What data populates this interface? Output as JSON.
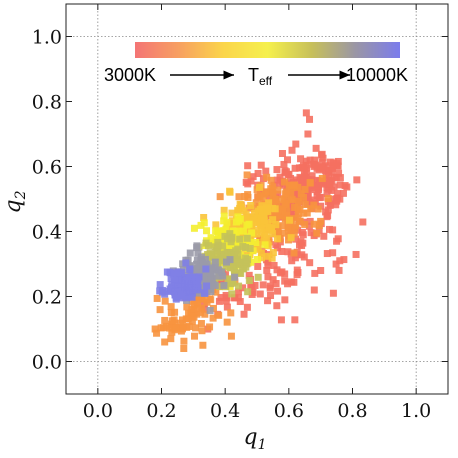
{
  "chart_data": {
    "type": "scatter",
    "xlabel": "q",
    "xlabel_sub": "1",
    "ylabel": "q",
    "ylabel_sub": "2",
    "xlim": [
      -0.1,
      1.1
    ],
    "ylim": [
      -0.1,
      1.1
    ],
    "x_ticks": [
      0.0,
      0.2,
      0.4,
      0.6,
      0.8,
      1.0
    ],
    "x_tick_labels": [
      "0.0",
      "0.2",
      "0.4",
      "0.6",
      "0.8",
      "1.0"
    ],
    "y_ticks": [
      0.0,
      0.2,
      0.4,
      0.6,
      0.8,
      1.0
    ],
    "y_tick_labels": [
      "0.0",
      "0.2",
      "0.4",
      "0.6",
      "0.8",
      "1.0"
    ],
    "reference_lines": {
      "x": [
        0.0,
        1.0
      ],
      "y": [
        0.0,
        1.0
      ]
    },
    "colorbar": {
      "label": "T",
      "label_sub": "eff",
      "min_label": "3000K",
      "max_label": "10000K",
      "colors": [
        "#f47575",
        "#f7a061",
        "#fbd54a",
        "#f5f04d",
        "#c7c05a",
        "#9a96a6",
        "#7b7cec"
      ]
    },
    "series_colors": {
      "hot": "#8080e6",
      "warm_hot": "#9a9aa8",
      "mid": "#c4c25a",
      "warm": "#f4ee30",
      "orange_yellow": "#f9c43a",
      "orange": "#f7933f",
      "cool": "#f57060"
    },
    "point_groups": [
      {
        "temp": "hot",
        "cx": 0.27,
        "cy": 0.235,
        "sx": 0.03,
        "sy": 0.025,
        "n": 120,
        "seed": 11
      },
      {
        "temp": "warm_hot",
        "cx": 0.33,
        "cy": 0.265,
        "sx": 0.035,
        "sy": 0.035,
        "n": 110,
        "seed": 12
      },
      {
        "temp": "mid",
        "cx": 0.41,
        "cy": 0.31,
        "sx": 0.04,
        "sy": 0.04,
        "n": 110,
        "seed": 13
      },
      {
        "temp": "warm",
        "cx": 0.42,
        "cy": 0.36,
        "sx": 0.04,
        "sy": 0.04,
        "n": 130,
        "seed": 14
      },
      {
        "temp": "orange_yellow",
        "cx": 0.49,
        "cy": 0.42,
        "sx": 0.05,
        "sy": 0.045,
        "n": 130,
        "seed": 15
      },
      {
        "temp": "orange",
        "cx": 0.57,
        "cy": 0.46,
        "sx": 0.06,
        "sy": 0.05,
        "n": 150,
        "seed": 16
      },
      {
        "temp": "orange",
        "cx": 0.3,
        "cy": 0.16,
        "sx": 0.05,
        "sy": 0.04,
        "n": 60,
        "seed": 17
      },
      {
        "temp": "cool",
        "cx": 0.63,
        "cy": 0.53,
        "sx": 0.07,
        "sy": 0.05,
        "n": 160,
        "seed": 18
      },
      {
        "temp": "cool",
        "cx": 0.62,
        "cy": 0.36,
        "sx": 0.07,
        "sy": 0.06,
        "n": 70,
        "seed": 19
      },
      {
        "temp": "cool",
        "cx": 0.45,
        "cy": 0.22,
        "sx": 0.08,
        "sy": 0.05,
        "n": 60,
        "seed": 20
      },
      {
        "temp": "cool",
        "cx": 0.72,
        "cy": 0.55,
        "sx": 0.04,
        "sy": 0.04,
        "n": 50,
        "seed": 21
      },
      {
        "temp": "orange",
        "cx": 0.24,
        "cy": 0.1,
        "sx": 0.03,
        "sy": 0.02,
        "n": 25,
        "seed": 22
      }
    ],
    "outliers": [
      {
        "x": 0.655,
        "y": 0.765,
        "temp": "cool"
      },
      {
        "x": 0.665,
        "y": 0.745,
        "temp": "cool"
      },
      {
        "x": 0.66,
        "y": 0.7,
        "temp": "cool"
      },
      {
        "x": 0.61,
        "y": 0.65,
        "temp": "cool"
      },
      {
        "x": 0.58,
        "y": 0.64,
        "temp": "cool"
      },
      {
        "x": 0.75,
        "y": 0.37,
        "temp": "cool"
      },
      {
        "x": 0.76,
        "y": 0.31,
        "temp": "cool"
      },
      {
        "x": 0.74,
        "y": 0.21,
        "temp": "cool"
      },
      {
        "x": 0.68,
        "y": 0.22,
        "temp": "cool"
      },
      {
        "x": 0.7,
        "y": 0.28,
        "temp": "cool"
      },
      {
        "x": 0.56,
        "y": 0.24,
        "temp": "cool"
      },
      {
        "x": 0.21,
        "y": 0.06,
        "temp": "orange"
      },
      {
        "x": 0.27,
        "y": 0.04,
        "temp": "orange"
      },
      {
        "x": 0.33,
        "y": 0.05,
        "temp": "orange"
      },
      {
        "x": 0.18,
        "y": 0.1,
        "temp": "orange"
      }
    ]
  }
}
